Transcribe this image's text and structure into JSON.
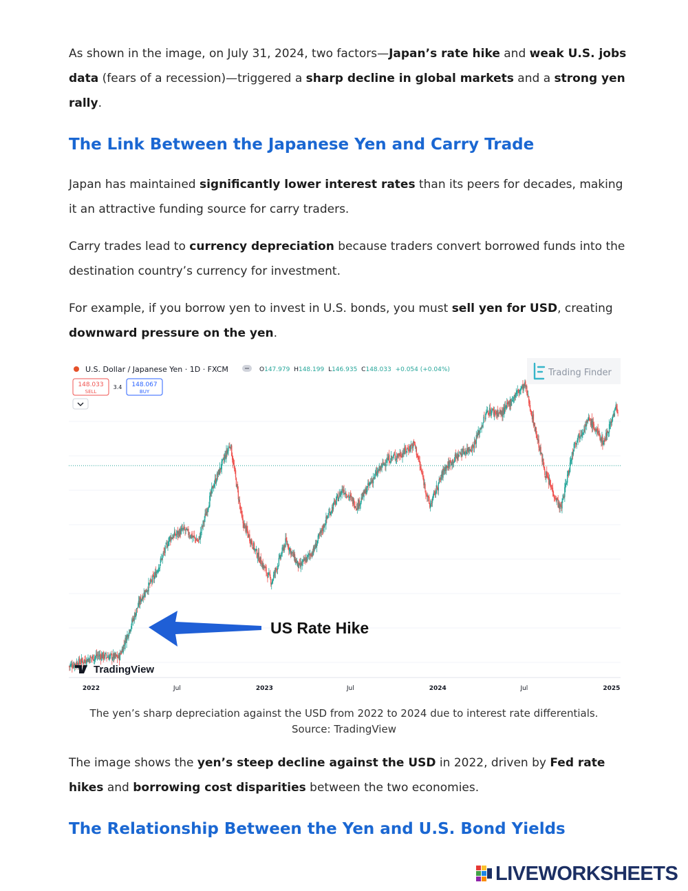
{
  "para1": {
    "p1": "As shown in the image, on July 31, 2024, two factors—",
    "b1": "Japan’s rate hike",
    "p2": " and ",
    "b2": "weak U.S. jobs data",
    "p3": " (fears of a recession)—triggered a ",
    "b3": "sharp decline in global markets",
    "p4": " and a ",
    "b4": "strong yen rally",
    "p5": "."
  },
  "heading1": "The Link Between the Japanese Yen and Carry Trade",
  "para2": {
    "p1": "Japan has maintained ",
    "b1": "significantly lower interest rates",
    "p2": " than its peers for decades, making it an attractive funding source for carry traders."
  },
  "para3": {
    "p1": "Carry trades lead to ",
    "b1": "currency depreciation",
    "p2": " because traders convert borrowed funds into the destination country’s currency for investment."
  },
  "para4": {
    "p1": "For example, if you borrow yen to invest in U.S. bonds, you must ",
    "b1": "sell yen for USD",
    "p2": ", creating ",
    "b2": "downward pressure on the yen",
    "p3": "."
  },
  "chart": {
    "symbol": "U.S. Dollar / Japanese Yen · 1D · FXCM",
    "ohlc": {
      "o_label": "O",
      "o": "147.979",
      "h_label": "H",
      "h": "148.199",
      "l_label": "L",
      "l": "146.935",
      "c_label": "C",
      "c": "148.033",
      "change": "+0.054 (+0.04%)"
    },
    "sell_price": "148.033",
    "sell_label": "SELL",
    "spread": "3.4",
    "buy_price": "148.067",
    "buy_label": "BUY",
    "brand": "Trading Finder",
    "tv_logo": "TradingView",
    "annotation": "US Rate Hike",
    "x_ticks": [
      "2022",
      "Jul",
      "2023",
      "Jul",
      "2024",
      "Jul",
      "2025"
    ],
    "colors": {
      "up": "#26a69a",
      "down": "#ef5350",
      "arrow": "#1f5fd6",
      "reference_line": "#26a69a"
    }
  },
  "chart_data": {
    "type": "candlestick",
    "title": "U.S. Dollar / Japanese Yen · 1D · FXCM",
    "xlabel": "",
    "ylabel": "",
    "x_ticks": [
      "2022",
      "Jul",
      "2023",
      "Jul",
      "2024",
      "Jul",
      "2025"
    ],
    "series": [
      {
        "name": "U.S. Dollar / Japanese Yen",
        "points": [
          {
            "x": "2021-11",
            "close": 113.5
          },
          {
            "x": "2022-01",
            "close": 115.3
          },
          {
            "x": "2022-03-01",
            "close": 115.0
          },
          {
            "x": "2022-04",
            "close": 125.0
          },
          {
            "x": "2022-05",
            "close": 129.0
          },
          {
            "x": "2022-06",
            "close": 135.5
          },
          {
            "x": "2022-07",
            "close": 137.0
          },
          {
            "x": "2022-08",
            "close": 135.0
          },
          {
            "x": "2022-09",
            "close": 144.5
          },
          {
            "x": "2022-10-21",
            "close": 151.8
          },
          {
            "x": "2022-11",
            "close": 138.5
          },
          {
            "x": "2022-12",
            "close": 133.0
          },
          {
            "x": "2023-01-16",
            "close": 128.0
          },
          {
            "x": "2023-02",
            "close": 135.0
          },
          {
            "x": "2023-03",
            "close": 130.5
          },
          {
            "x": "2023-04",
            "close": 133.5
          },
          {
            "x": "2023-05",
            "close": 139.5
          },
          {
            "x": "2023-06",
            "close": 144.0
          },
          {
            "x": "2023-07",
            "close": 141.0
          },
          {
            "x": "2023-08",
            "close": 145.5
          },
          {
            "x": "2023-09",
            "close": 149.0
          },
          {
            "x": "2023-10",
            "close": 150.0
          },
          {
            "x": "2023-11-13",
            "close": 151.8
          },
          {
            "x": "2023-12",
            "close": 141.0
          },
          {
            "x": "2024-01",
            "close": 147.5
          },
          {
            "x": "2024-02",
            "close": 150.0
          },
          {
            "x": "2024-03",
            "close": 151.3
          },
          {
            "x": "2024-04",
            "close": 157.5
          },
          {
            "x": "2024-05",
            "close": 157.0
          },
          {
            "x": "2024-06",
            "close": 160.5
          },
          {
            "x": "2024-07-03",
            "close": 161.9
          },
          {
            "x": "2024-08",
            "close": 146.5
          },
          {
            "x": "2024-09-16",
            "close": 140.5
          },
          {
            "x": "2024-10",
            "close": 152.0
          },
          {
            "x": "2024-11",
            "close": 156.0
          },
          {
            "x": "2024-12",
            "close": 152.0
          },
          {
            "x": "2025-01",
            "close": 157.5
          },
          {
            "x": "2025-01-10",
            "close": 158.0
          },
          {
            "x": "2025-01-15",
            "close": 155.8
          }
        ]
      }
    ],
    "current_price": 148.033,
    "ylim": [
      112,
      163
    ],
    "grid": true,
    "annotations": [
      "US Rate Hike"
    ]
  },
  "caption": {
    "line1": "The yen’s sharp depreciation against the USD from 2022 to 2024 due to interest rate differentials.",
    "line2": "Source: TradingView"
  },
  "para5": {
    "p1": "The image shows the ",
    "b1": "yen’s steep decline against the USD",
    "p2": " in 2022, driven by ",
    "b2": "Fed rate hikes",
    "p3": " and ",
    "b3": "borrowing cost disparities",
    "p4": " between the two economies."
  },
  "heading2": "The Relationship Between the Yen and U.S. Bond Yields",
  "footer": {
    "logo_text": "LIVEWORKSHEETS"
  }
}
